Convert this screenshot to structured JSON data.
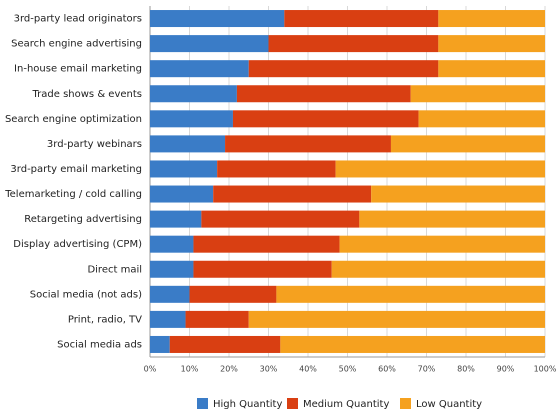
{
  "chart_data": {
    "type": "bar",
    "orientation": "horizontal",
    "stacked": true,
    "categories": [
      "3rd-party lead originators",
      "Search engine advertising",
      "In-house email marketing",
      "Trade shows & events",
      "Search engine optimization",
      "3rd-party webinars",
      "3rd-party email marketing",
      "Telemarketing / cold calling",
      "Retargeting advertising",
      "Display advertising (CPM)",
      "Direct mail",
      "Social media (not ads)",
      "Print, radio, TV",
      "Social media ads"
    ],
    "series": [
      {
        "name": "High Quantity",
        "color": "#3a7cc7",
        "values": [
          34,
          30,
          25,
          22,
          21,
          19,
          17,
          16,
          13,
          11,
          11,
          10,
          9,
          5
        ]
      },
      {
        "name": "Medium Quantity",
        "color": "#d93f12",
        "values": [
          39,
          43,
          48,
          44,
          47,
          42,
          30,
          40,
          40,
          37,
          35,
          22,
          16,
          28
        ]
      },
      {
        "name": "Low Quantity",
        "color": "#f5a11f",
        "values": [
          27,
          27,
          27,
          34,
          32,
          39,
          53,
          44,
          47,
          52,
          54,
          68,
          75,
          67
        ]
      }
    ],
    "xlim": [
      0,
      100
    ],
    "xticks": [
      {
        "value": 0,
        "label": "0%"
      },
      {
        "value": 10,
        "label": "10%"
      },
      {
        "value": 20,
        "label": "20%"
      },
      {
        "value": 30,
        "label": "30%"
      },
      {
        "value": 40,
        "label": "40%"
      },
      {
        "value": 50,
        "label": "50%"
      },
      {
        "value": 60,
        "label": "60%"
      },
      {
        "value": 70,
        "label": "70%"
      },
      {
        "value": 80,
        "label": "80%"
      },
      {
        "value": 90,
        "label": "90%"
      },
      {
        "value": 100,
        "label": "100%"
      }
    ],
    "grid": true,
    "legend": "bottom"
  }
}
